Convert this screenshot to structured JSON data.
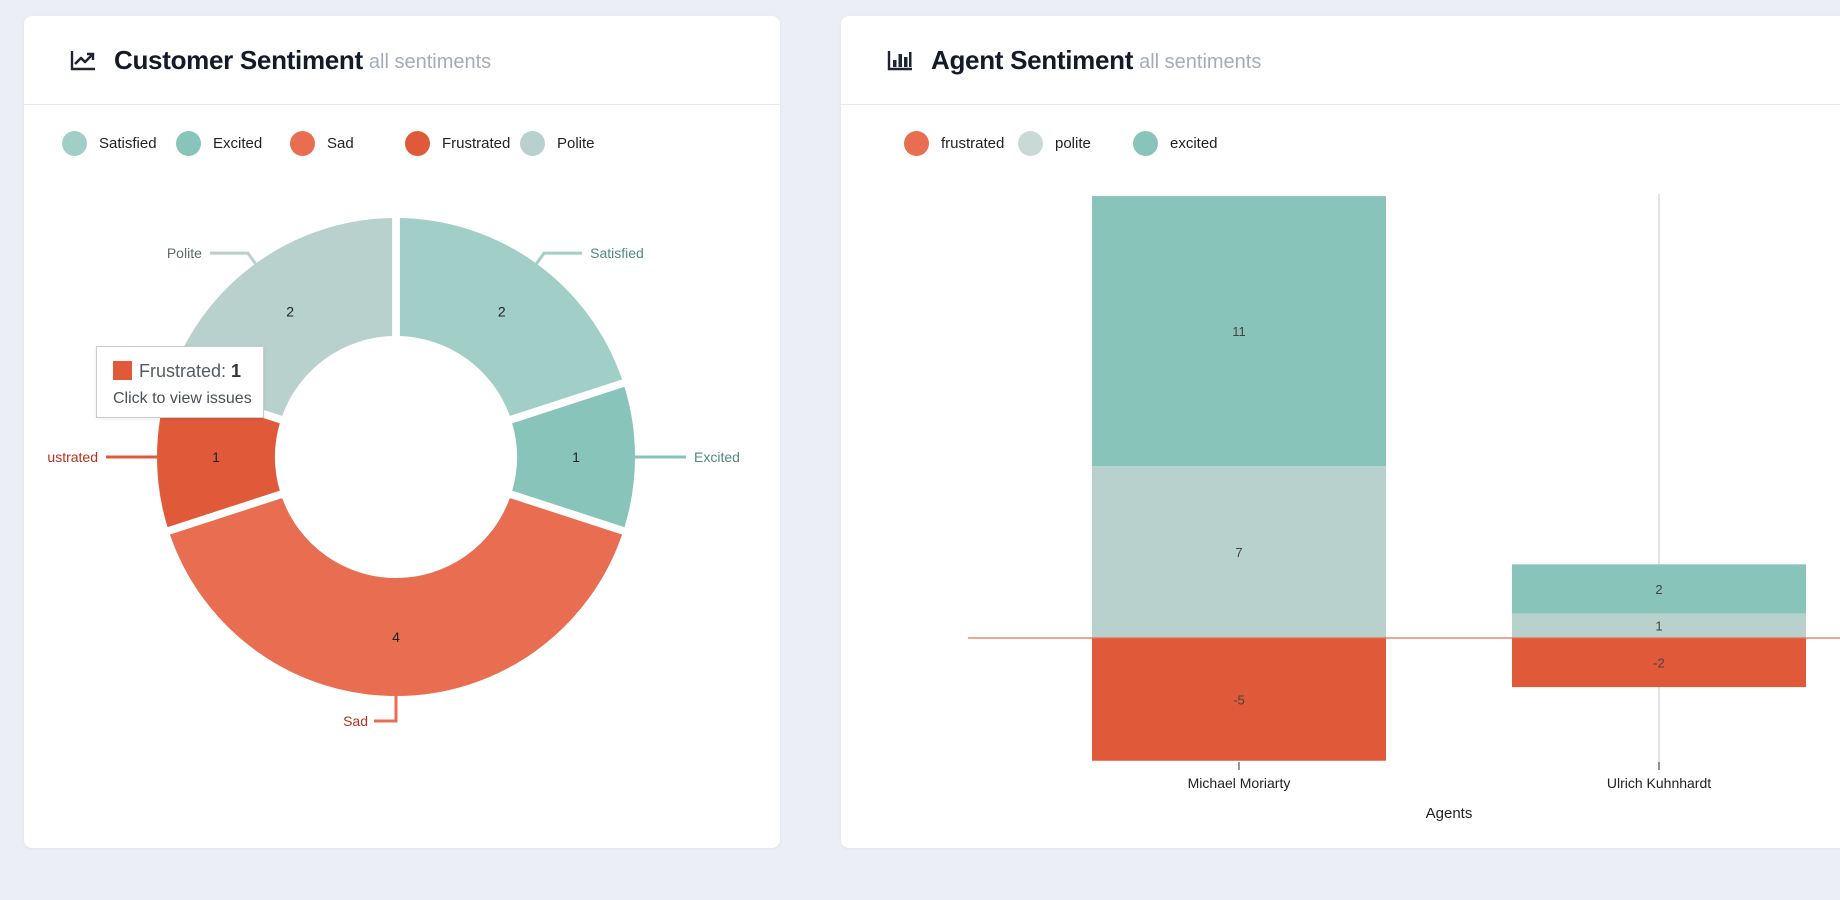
{
  "customer": {
    "title": "Customer Sentiment",
    "subtitle": "all sentiments",
    "icon": "line-chart-icon",
    "legend": [
      {
        "label": "Satisfied",
        "color": "#a1cfc8"
      },
      {
        "label": "Excited",
        "color": "#88c4b9"
      },
      {
        "label": "Sad",
        "color": "#e86d51"
      },
      {
        "label": "Frustrated",
        "color": "#e05a3a"
      },
      {
        "label": "Polite",
        "color": "#b9d1cd"
      }
    ],
    "tooltip": {
      "label": "Frustrated:",
      "value": "1",
      "action": "Click to view issues",
      "color": "#e05a3a"
    }
  },
  "agent": {
    "title": "Agent Sentiment",
    "subtitle": "all sentiments",
    "icon": "bar-chart-icon",
    "legend": [
      {
        "label": "frustrated",
        "color": "#e86d51"
      },
      {
        "label": "polite",
        "color": "#c9d9d6"
      },
      {
        "label": "excited",
        "color": "#88c4b9"
      }
    ]
  },
  "chart_data": [
    {
      "type": "pie",
      "title": "Customer Sentiment",
      "subtitle": "all sentiments",
      "donut": true,
      "slices": [
        {
          "label": "Satisfied",
          "value": 2,
          "color": "#a1cfc8",
          "outer_label": "Satisfied",
          "label_color": "#4f8b81"
        },
        {
          "label": "Excited",
          "value": 1,
          "color": "#88c4b9",
          "outer_label": "Excited",
          "label_color": "#4f8b81"
        },
        {
          "label": "Sad",
          "value": 4,
          "color": "#e86d51",
          "outer_label": "Sad",
          "label_color": "#b7321a"
        },
        {
          "label": "Frustrated",
          "value": 1,
          "color": "#e05a3a",
          "outer_label": "ustrated",
          "label_color": "#b7321a"
        },
        {
          "label": "Polite",
          "value": 2,
          "color": "#b9d1cd",
          "outer_label": "Polite",
          "label_color": "#5a6c69"
        }
      ]
    },
    {
      "type": "bar",
      "stacked": true,
      "title": "Agent Sentiment",
      "subtitle": "all sentiments",
      "categories": [
        "Michael Moriarty",
        "Ulrich Kuhnhardt"
      ],
      "xlabel": "Agents",
      "ylabel": "",
      "ylim": [
        -5,
        18
      ],
      "series": [
        {
          "name": "frustrated",
          "values": [
            -5,
            -2
          ],
          "color": "#e05a3a"
        },
        {
          "name": "polite",
          "values": [
            7,
            1
          ],
          "color": "#b9d1cd"
        },
        {
          "name": "excited",
          "values": [
            11,
            2
          ],
          "color": "#88c4b9"
        }
      ]
    }
  ]
}
